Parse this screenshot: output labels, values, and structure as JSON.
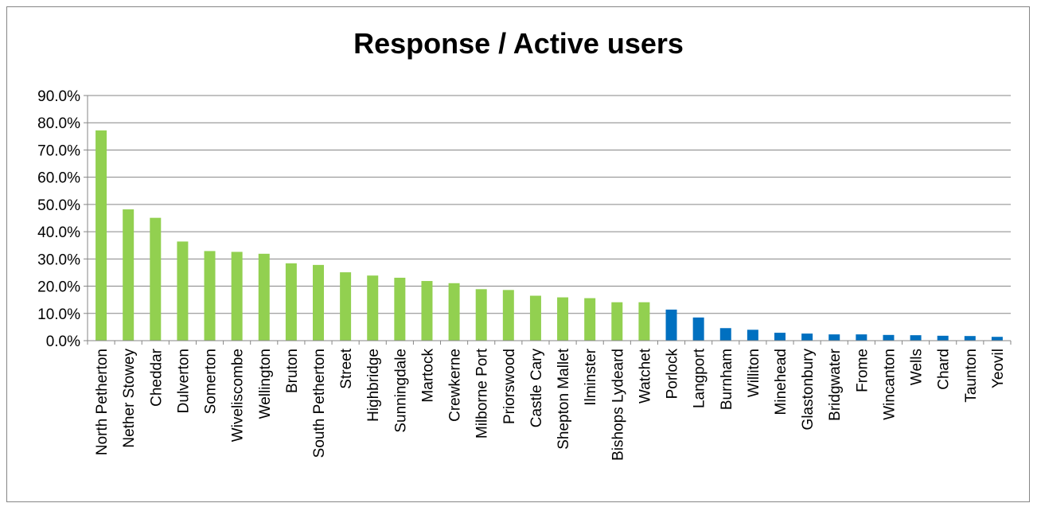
{
  "chart_data": {
    "type": "bar",
    "title": "Response / Active users",
    "xlabel": "",
    "ylabel": "",
    "ylim": [
      0,
      90
    ],
    "y_ticks": [
      "0.0%",
      "10.0%",
      "20.0%",
      "30.0%",
      "40.0%",
      "50.0%",
      "60.0%",
      "70.0%",
      "80.0%",
      "90.0%"
    ],
    "grid": true,
    "legend": "none",
    "colors": {
      "group_a": "#92d050",
      "group_b": "#0070c0"
    },
    "categories": [
      "North Petherton",
      "Nether Stowey",
      "Cheddar",
      "Dulverton",
      "Somerton",
      "Wiveliscombe",
      "Wellington",
      "Bruton",
      "South Petherton",
      "Street",
      "Highbridge",
      "Sunningdale",
      "Martock",
      "Crewkerne",
      "Milborne Port",
      "Priorswood",
      "Castle Cary",
      "Shepton Mallet",
      "Ilminster",
      "Bishops Lydeard",
      "Watchet",
      "Porlock",
      "Langport",
      "Burnham",
      "Williton",
      "Minehead",
      "Glastonbury",
      "Bridgwater",
      "Frome",
      "Wincanton",
      "Wells",
      "Chard",
      "Taunton",
      "Yeovil"
    ],
    "values": [
      77.2,
      48.2,
      45.1,
      36.4,
      32.9,
      32.6,
      31.9,
      28.4,
      27.8,
      25.1,
      23.9,
      23.1,
      21.9,
      21.1,
      18.9,
      18.6,
      16.5,
      15.9,
      15.6,
      14.1,
      14.1,
      11.4,
      8.5,
      4.6,
      4.0,
      2.9,
      2.6,
      2.3,
      2.3,
      2.1,
      2.0,
      1.8,
      1.7,
      1.4
    ],
    "bar_groups": [
      "a",
      "a",
      "a",
      "a",
      "a",
      "a",
      "a",
      "a",
      "a",
      "a",
      "a",
      "a",
      "a",
      "a",
      "a",
      "a",
      "a",
      "a",
      "a",
      "a",
      "a",
      "b",
      "b",
      "b",
      "b",
      "b",
      "b",
      "b",
      "b",
      "b",
      "b",
      "b",
      "b",
      "b"
    ]
  }
}
